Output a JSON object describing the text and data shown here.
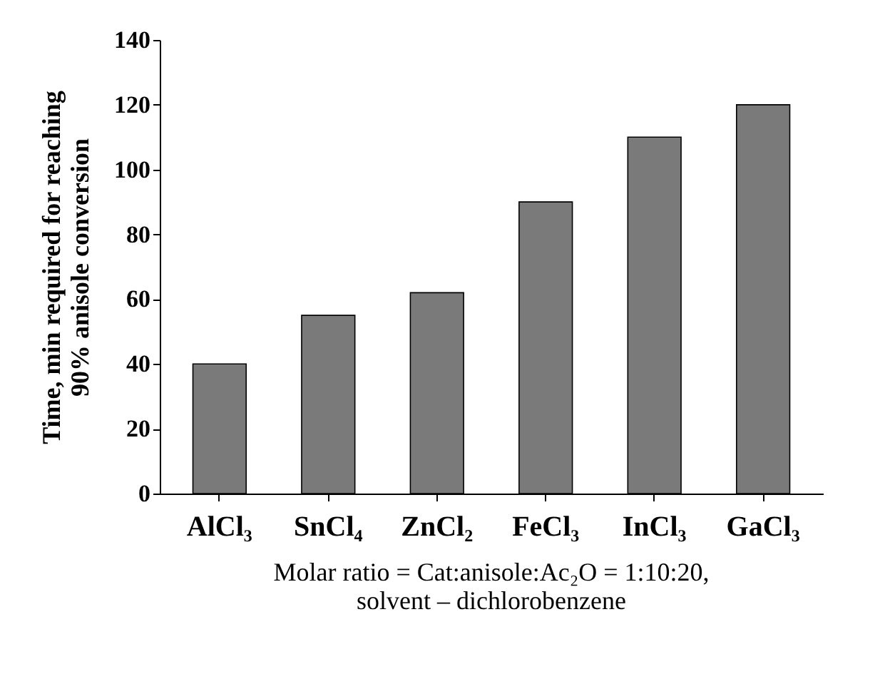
{
  "chart_data": {
    "type": "bar",
    "ylabel": "Time, min required for reaching\n90% anisole conversion",
    "categories": [
      "AlCl₃",
      "SnCl₄",
      "ZnCl₂",
      "FeCl₃",
      "InCl₃",
      "GaCl₃"
    ],
    "values": [
      40,
      55,
      62,
      90,
      110,
      120
    ],
    "color": "#7a7a7a",
    "ylim": [
      0,
      140
    ],
    "yticks": [
      0,
      20,
      40,
      60,
      80,
      100,
      120,
      140
    ],
    "grid": false,
    "annotations": [
      "Molar ratio = Cat:anisole:Ac₂O = 1:10:20,\nsolvent – dichlorobenzene"
    ]
  }
}
